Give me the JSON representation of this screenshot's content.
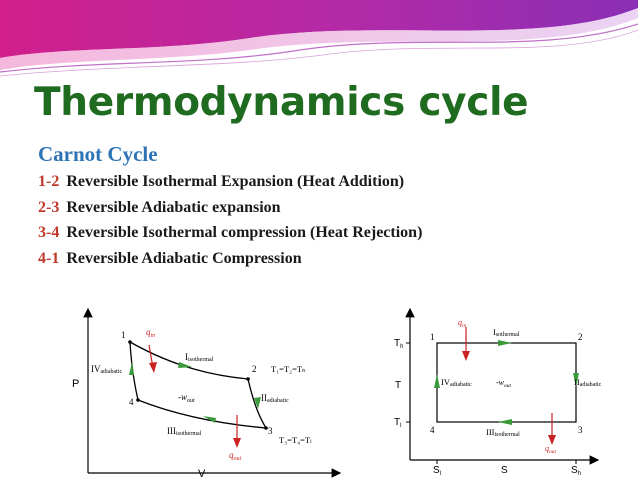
{
  "slide": {
    "title": "Thermodynamics cycle",
    "subtitle": "Carnot Cycle",
    "steps": [
      {
        "num": "1-2",
        "text": "Reversible Isothermal Expansion (Heat Addition)"
      },
      {
        "num": "2-3",
        "text": "Reversible Adiabatic expansion"
      },
      {
        "num": "3-4",
        "text": "Reversible Isothermal compression (Heat Rejection)"
      },
      {
        "num": "4-1",
        "text": "Reversible Adiabatic Compression"
      }
    ]
  },
  "pv_diagram": {
    "x_axis": "V",
    "y_axis": "P",
    "points": [
      "1",
      "2",
      "3",
      "4"
    ],
    "q_in": "q",
    "q_in_sub": "in",
    "q_out": "q",
    "q_out_sub": "out",
    "w_out": "-w",
    "w_out_sub": "out",
    "iso_top": "I",
    "iso_top_sub": "isothermal",
    "ad_right": "II",
    "ad_right_sub": "adiabatic",
    "iso_bottom": "III",
    "iso_bottom_sub": "isothermal",
    "ad_left": "IV",
    "ad_left_sub": "adiabatic",
    "temp_high": "T₁=T₂=Tₕ",
    "temp_low": "T₃=T₄=Tₗ"
  },
  "ts_diagram": {
    "x_axis": "S",
    "y_axis": "T",
    "y_high": "T",
    "y_high_sub": "h",
    "y_low": "T",
    "y_low_sub": "l",
    "x_left": "S",
    "x_left_sub": "l",
    "x_right": "S",
    "x_right_sub": "h",
    "points": [
      "1",
      "2",
      "3",
      "4"
    ],
    "q_in": "q",
    "q_in_sub": "in",
    "q_out": "q",
    "q_out_sub": "out",
    "w_out": "-w",
    "w_out_sub": "out",
    "iso_top": "I",
    "iso_top_sub": "sothermal",
    "ad_right": "II",
    "ad_right_sub": "adiabatic",
    "iso_bottom": "III",
    "iso_bottom_sub": "isothermal",
    "ad_left": "IV",
    "ad_left_sub": "adiabatic"
  },
  "colors": {
    "banner_pink": "#d11f8b",
    "banner_purple": "#8a2fb5",
    "title_green": "#1f6b1f",
    "subtitle_blue": "#2e74b5",
    "step_number_red": "#c0392b",
    "arrow_green": "#3a9a3a",
    "arrow_red": "#cc2222"
  }
}
